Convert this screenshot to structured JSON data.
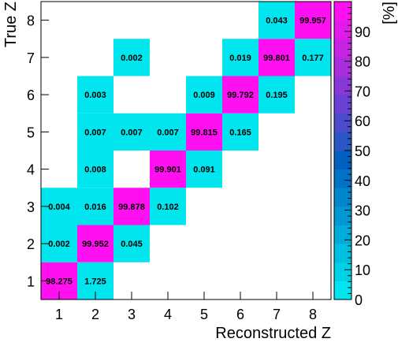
{
  "chart_data": {
    "type": "heatmap",
    "title": "",
    "xlabel": "Reconstructed Z",
    "ylabel": "True Z",
    "zlabel": "[%]",
    "x_categories": [
      "1",
      "2",
      "3",
      "4",
      "5",
      "6",
      "7",
      "8"
    ],
    "y_categories": [
      "1",
      "2",
      "3",
      "4",
      "5",
      "6",
      "7",
      "8"
    ],
    "zlim": [
      0,
      100
    ],
    "colorbar_ticks": [
      "0",
      "10",
      "20",
      "30",
      "40",
      "50",
      "60",
      "70",
      "80",
      "90"
    ],
    "colorbar_palette": [
      "#00e5ee",
      "#00d2e6",
      "#00bfe0",
      "#00acd9",
      "#0099d3",
      "#0086cc",
      "#0073c6",
      "#0060c0",
      "#2a56c6",
      "#4b4bcc",
      "#6a41d2",
      "#8a37d8",
      "#a92ede",
      "#c524e4",
      "#e21aea",
      "#ff10f0"
    ],
    "cells": [
      {
        "x": "1",
        "y": "1",
        "value": 98.275,
        "label": "98.275"
      },
      {
        "x": "2",
        "y": "1",
        "value": 1.725,
        "label": "1.725"
      },
      {
        "x": "1",
        "y": "2",
        "value": 0.002,
        "label": "0.002"
      },
      {
        "x": "2",
        "y": "2",
        "value": 99.952,
        "label": "99.952"
      },
      {
        "x": "3",
        "y": "2",
        "value": 0.045,
        "label": "0.045"
      },
      {
        "x": "1",
        "y": "3",
        "value": 0.004,
        "label": "0.004"
      },
      {
        "x": "2",
        "y": "3",
        "value": 0.016,
        "label": "0.016"
      },
      {
        "x": "3",
        "y": "3",
        "value": 99.878,
        "label": "99.878"
      },
      {
        "x": "4",
        "y": "3",
        "value": 0.102,
        "label": "0.102"
      },
      {
        "x": "2",
        "y": "4",
        "value": 0.008,
        "label": "0.008"
      },
      {
        "x": "4",
        "y": "4",
        "value": 99.901,
        "label": "99.901"
      },
      {
        "x": "5",
        "y": "4",
        "value": 0.091,
        "label": "0.091"
      },
      {
        "x": "2",
        "y": "5",
        "value": 0.007,
        "label": "0.007"
      },
      {
        "x": "3",
        "y": "5",
        "value": 0.007,
        "label": "0.007"
      },
      {
        "x": "4",
        "y": "5",
        "value": 0.007,
        "label": "0.007"
      },
      {
        "x": "5",
        "y": "5",
        "value": 99.815,
        "label": "99.815"
      },
      {
        "x": "6",
        "y": "5",
        "value": 0.165,
        "label": "0.165"
      },
      {
        "x": "2",
        "y": "6",
        "value": 0.003,
        "label": "0.003"
      },
      {
        "x": "5",
        "y": "6",
        "value": 0.009,
        "label": "0.009"
      },
      {
        "x": "6",
        "y": "6",
        "value": 99.792,
        "label": "99.792"
      },
      {
        "x": "7",
        "y": "6",
        "value": 0.195,
        "label": "0.195"
      },
      {
        "x": "3",
        "y": "7",
        "value": 0.002,
        "label": "0.002"
      },
      {
        "x": "6",
        "y": "7",
        "value": 0.019,
        "label": "0.019"
      },
      {
        "x": "7",
        "y": "7",
        "value": 99.801,
        "label": "99.801"
      },
      {
        "x": "8",
        "y": "7",
        "value": 0.177,
        "label": "0.177"
      },
      {
        "x": "7",
        "y": "8",
        "value": 0.043,
        "label": "0.043"
      },
      {
        "x": "8",
        "y": "8",
        "value": 99.957,
        "label": "99.957"
      }
    ]
  }
}
